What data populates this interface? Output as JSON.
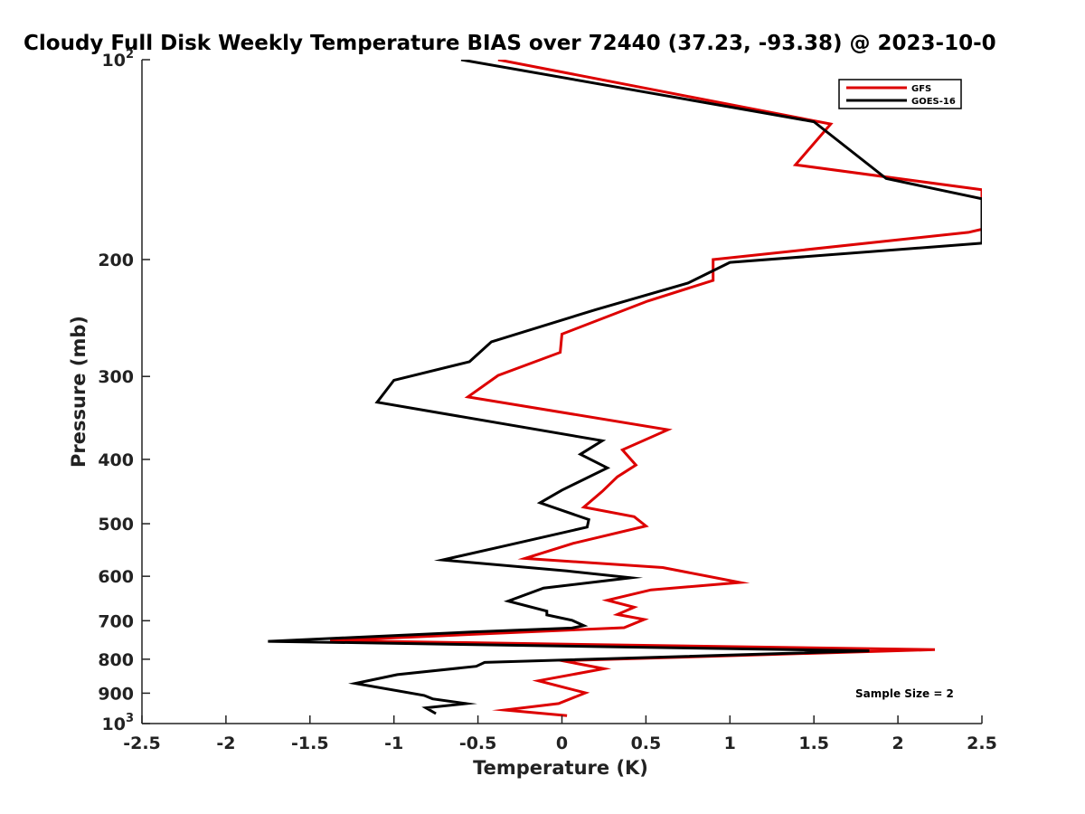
{
  "chart_data": {
    "type": "line",
    "title": "Cloudy Full Disk Weekly Temperature BIAS over 72440 (37.23, -93.38) @ 2023-10-0",
    "xlabel": "Temperature (K)",
    "ylabel": "Pressure (mb)",
    "xlim": [
      -2.5,
      2.5
    ],
    "ylim": [
      100,
      1000
    ],
    "y_scale": "log",
    "y_reversed": true,
    "x_ticks": [
      -2.5,
      -2,
      -1.5,
      -1,
      -0.5,
      0,
      0.5,
      1,
      1.5,
      2,
      2.5
    ],
    "x_tick_labels": [
      "-2.5",
      "-2",
      "-1.5",
      "-1",
      "-0.5",
      "0",
      "0.5",
      "1",
      "1.5",
      "2",
      "2.5"
    ],
    "y_ticks": [
      100,
      200,
      300,
      400,
      500,
      600,
      700,
      800,
      900,
      1000
    ],
    "y_tick_labels": [
      "10^2",
      "200",
      "300",
      "400",
      "500",
      "600",
      "700",
      "800",
      "900",
      "10^3"
    ],
    "grid": false,
    "legend_position": "top-right",
    "annotation": "Sample Size = 2",
    "series": [
      {
        "name": "GFS",
        "color": "#dd0000",
        "points": [
          [
            -0.38,
            100
          ],
          [
            1.6,
            125
          ],
          [
            1.39,
            144
          ],
          [
            2.5,
            157
          ],
          [
            2.5,
            180
          ],
          [
            2.42,
            182
          ],
          [
            0.9,
            200
          ],
          [
            0.9,
            215
          ],
          [
            0.51,
            231
          ],
          [
            0.0,
            259
          ],
          [
            -0.01,
            276
          ],
          [
            -0.38,
            299
          ],
          [
            -0.56,
            322
          ],
          [
            0.63,
            361
          ],
          [
            0.36,
            387
          ],
          [
            0.44,
            408
          ],
          [
            0.33,
            425
          ],
          [
            0.24,
            447
          ],
          [
            0.13,
            472
          ],
          [
            0.43,
            488
          ],
          [
            0.5,
            504
          ],
          [
            0.07,
            535
          ],
          [
            -0.22,
            564
          ],
          [
            0.6,
            582
          ],
          [
            1.06,
            613
          ],
          [
            0.53,
            629
          ],
          [
            0.27,
            652
          ],
          [
            0.43,
            668
          ],
          [
            0.33,
            685
          ],
          [
            0.49,
            697
          ],
          [
            0.37,
            717
          ],
          [
            -1.38,
            750
          ],
          [
            2.22,
            774
          ],
          [
            0.0,
            804
          ],
          [
            0.25,
            827
          ],
          [
            -0.14,
            862
          ],
          [
            0.14,
            899
          ],
          [
            -0.02,
            933
          ],
          [
            -0.34,
            954
          ],
          [
            0.03,
            973
          ]
        ]
      },
      {
        "name": "GOES-16",
        "color": "#000000",
        "points": [
          [
            -0.6,
            100
          ],
          [
            1.5,
            124
          ],
          [
            1.93,
            151
          ],
          [
            2.5,
            162
          ],
          [
            2.5,
            189
          ],
          [
            1.0,
            202
          ],
          [
            0.75,
            217
          ],
          [
            0.2,
            238
          ],
          [
            -0.42,
            266
          ],
          [
            -0.55,
            285
          ],
          [
            -1.0,
            304
          ],
          [
            -1.1,
            328
          ],
          [
            0.24,
            375
          ],
          [
            0.11,
            393
          ],
          [
            0.27,
            412
          ],
          [
            0.0,
            445
          ],
          [
            -0.13,
            465
          ],
          [
            0.16,
            493
          ],
          [
            0.15,
            506
          ],
          [
            -0.34,
            540
          ],
          [
            -0.71,
            567
          ],
          [
            0.03,
            589
          ],
          [
            0.41,
            603
          ],
          [
            -0.11,
            625
          ],
          [
            -0.32,
            654
          ],
          [
            -0.09,
            677
          ],
          [
            -0.09,
            686
          ],
          [
            0.06,
            699
          ],
          [
            0.13,
            712
          ],
          [
            0.06,
            718
          ],
          [
            -0.54,
            728
          ],
          [
            -1.75,
            752
          ],
          [
            1.83,
            777
          ],
          [
            -0.46,
            809
          ],
          [
            -0.51,
            820
          ],
          [
            -0.98,
            844
          ],
          [
            -1.23,
            870
          ],
          [
            -0.82,
            907
          ],
          [
            -0.77,
            918
          ],
          [
            -0.57,
            933
          ],
          [
            -0.81,
            947
          ],
          [
            -0.75,
            966
          ]
        ]
      }
    ]
  }
}
